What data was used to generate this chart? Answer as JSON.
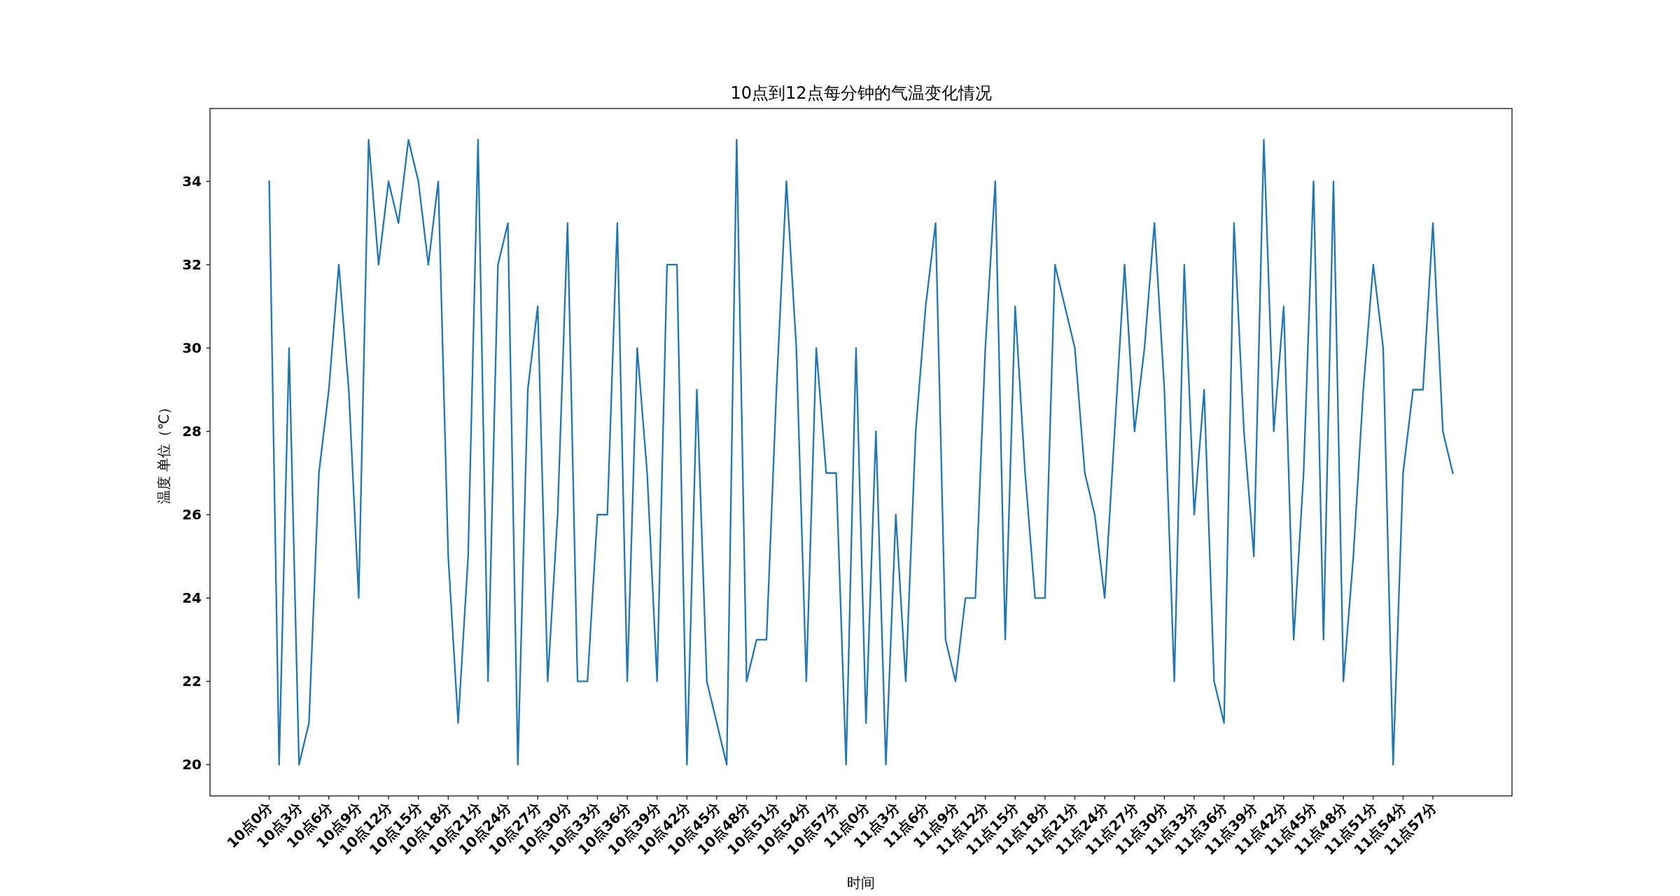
{
  "chart_data": {
    "type": "line",
    "title": "10点到12点每分钟的气温变化情况",
    "xlabel": "时间",
    "ylabel": "温度 单位（℃）",
    "categories": [
      "10点0分",
      null,
      null,
      "10点3分",
      null,
      null,
      "10点6分",
      null,
      null,
      "10点9分",
      null,
      null,
      "10点12分",
      null,
      null,
      "10点15分",
      null,
      null,
      "10点18分",
      null,
      null,
      "10点21分",
      null,
      null,
      "10点24分",
      null,
      null,
      "10点27分",
      null,
      null,
      "10点30分",
      null,
      null,
      "10点33分",
      null,
      null,
      "10点36分",
      null,
      null,
      "10点39分",
      null,
      null,
      "10点42分",
      null,
      null,
      "10点45分",
      null,
      null,
      "10点48分",
      null,
      null,
      "10点51分",
      null,
      null,
      "10点54分",
      null,
      null,
      "10点57分",
      null,
      null,
      "11点0分",
      null,
      null,
      "11点3分",
      null,
      null,
      "11点6分",
      null,
      null,
      "11点9分",
      null,
      null,
      "11点12分",
      null,
      null,
      "11点15分",
      null,
      null,
      "11点18分",
      null,
      null,
      "11点21分",
      null,
      null,
      "11点24分",
      null,
      null,
      "11点27分",
      null,
      null,
      "11点30分",
      null,
      null,
      "11点33分",
      null,
      null,
      "11点36分",
      null,
      null,
      "11点39分",
      null,
      null,
      "11点42分",
      null,
      null,
      "11点45分",
      null,
      null,
      "11点48分",
      null,
      null,
      "11点51分",
      null,
      null,
      "11点54分",
      null,
      null,
      "11点57分",
      null,
      null
    ],
    "values": [
      34,
      20,
      30,
      20,
      21,
      27,
      29,
      32,
      29,
      24,
      35,
      32,
      34,
      33,
      35,
      34,
      32,
      34,
      25,
      21,
      25,
      35,
      22,
      32,
      33,
      20,
      29,
      31,
      22,
      26,
      33,
      22,
      22,
      26,
      26,
      33,
      22,
      30,
      27,
      22,
      32,
      32,
      20,
      29,
      22,
      21,
      20,
      35,
      22,
      23,
      23,
      29,
      34,
      30,
      22,
      30,
      27,
      27,
      20,
      30,
      21,
      28,
      20,
      26,
      22,
      28,
      31,
      33,
      23,
      22,
      24,
      24,
      30,
      34,
      23,
      31,
      27,
      24,
      24,
      32,
      31,
      30,
      27,
      26,
      24,
      28,
      32,
      28,
      30,
      33,
      29,
      22,
      32,
      26,
      29,
      22,
      21,
      33,
      28,
      25,
      35,
      28,
      31,
      23,
      27,
      34,
      23,
      34,
      22,
      25,
      29,
      32,
      30,
      20,
      27,
      29,
      29,
      33,
      28,
      27
    ],
    "color": "#1f77b4",
    "ylim": [
      19.25,
      35.75
    ],
    "yticks": [
      20,
      22,
      24,
      26,
      28,
      30,
      32,
      34
    ],
    "grid": false
  }
}
